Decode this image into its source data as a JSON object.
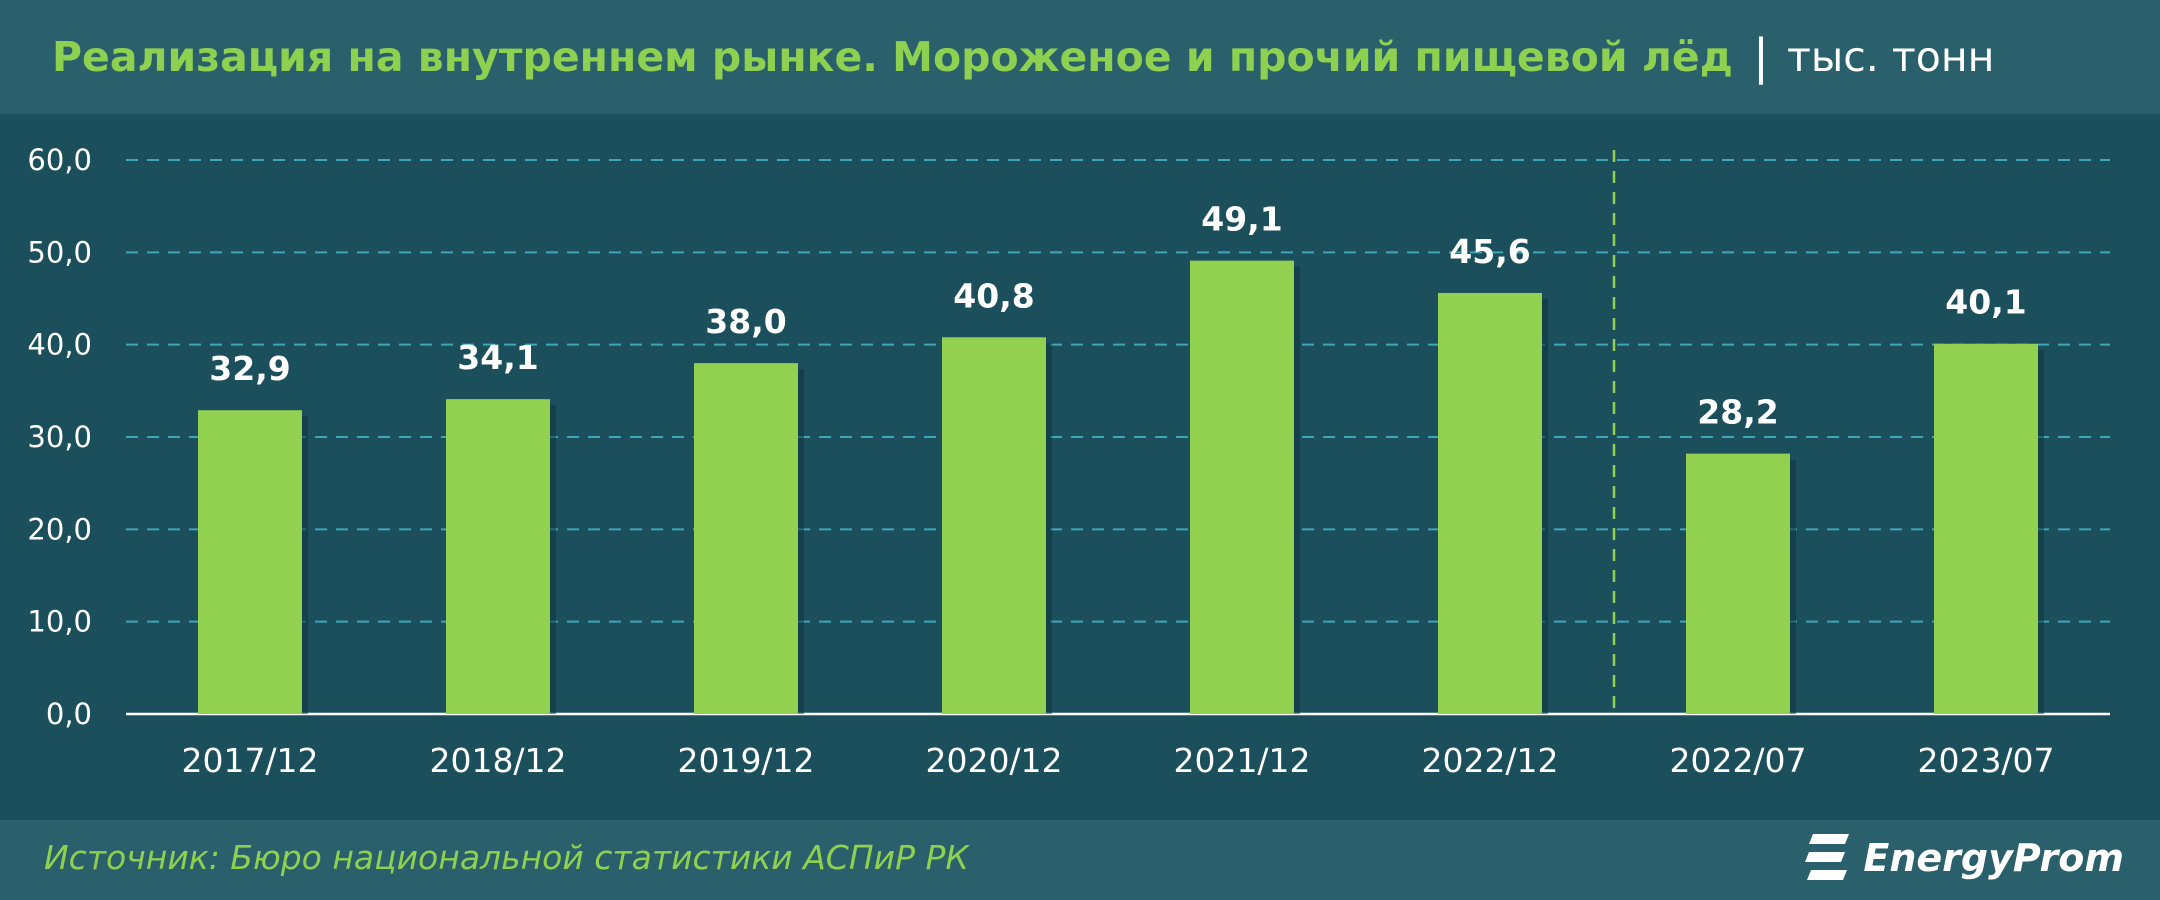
{
  "header": {
    "title": "Реализация на внутреннем рынке. Мороженое и прочий пищевой лёд",
    "separator": "|",
    "unit": "тыс. тонн"
  },
  "footer": {
    "source": "Источник: Бюро национальной статистики АСПиР РК",
    "logo_text": "EnergyProm"
  },
  "colors": {
    "background": "#1b4f5c",
    "header_bg": "#2a5f6c",
    "bar": "#92d050",
    "title": "#8ed150",
    "grid": "#3fa7b8",
    "text": "#ffffff"
  },
  "chart_data": {
    "type": "bar",
    "title": "Реализация на внутреннем рынке. Мороженое и прочий пищевой лёд",
    "ylabel": "",
    "xlabel": "",
    "unit": "тыс. тонн",
    "categories": [
      "2017/12",
      "2018/12",
      "2019/12",
      "2020/12",
      "2021/12",
      "2022/12",
      "2022/07",
      "2023/07"
    ],
    "values": [
      32.9,
      34.1,
      38.0,
      40.8,
      49.1,
      45.6,
      28.2,
      40.1
    ],
    "value_labels": [
      "32,9",
      "34,1",
      "38,0",
      "40,8",
      "49,1",
      "45,6",
      "28,2",
      "40,1"
    ],
    "ylim": [
      0,
      60
    ],
    "yticks": [
      "0,0",
      "10,0",
      "20,0",
      "30,0",
      "40,0",
      "50,0",
      "60,0"
    ],
    "grid": true,
    "group_divider_after_index": 5,
    "legend": "none"
  }
}
